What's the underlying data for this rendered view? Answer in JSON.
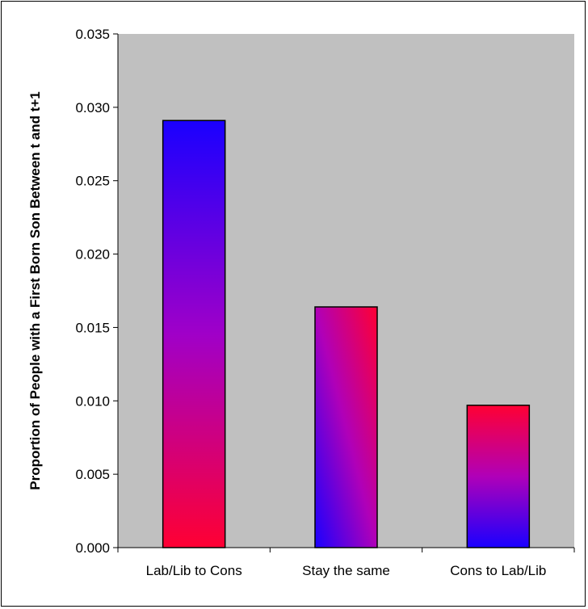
{
  "chart_data": {
    "type": "bar",
    "title": "",
    "xlabel": "",
    "ylabel": "Proportion of People with a First Born Son Between t and t+1",
    "categories": [
      "Lab/Lib to Cons",
      "Stay the same",
      "Cons to Lab/Lib"
    ],
    "values": [
      0.0291,
      0.0164,
      0.0097
    ],
    "ylim": [
      0,
      0.035
    ],
    "yticks": [
      "0.000",
      "0.005",
      "0.010",
      "0.015",
      "0.020",
      "0.025",
      "0.030",
      "0.035"
    ],
    "ytick_values": [
      0,
      0.005,
      0.01,
      0.015,
      0.02,
      0.025,
      0.03,
      0.035
    ],
    "grid": false,
    "legend": "none",
    "colors": {
      "plot_background": "#c0c0c0",
      "gradient_blue": "#1a00ff",
      "gradient_magenta": "#a000d0",
      "gradient_red": "#ff0033"
    }
  }
}
